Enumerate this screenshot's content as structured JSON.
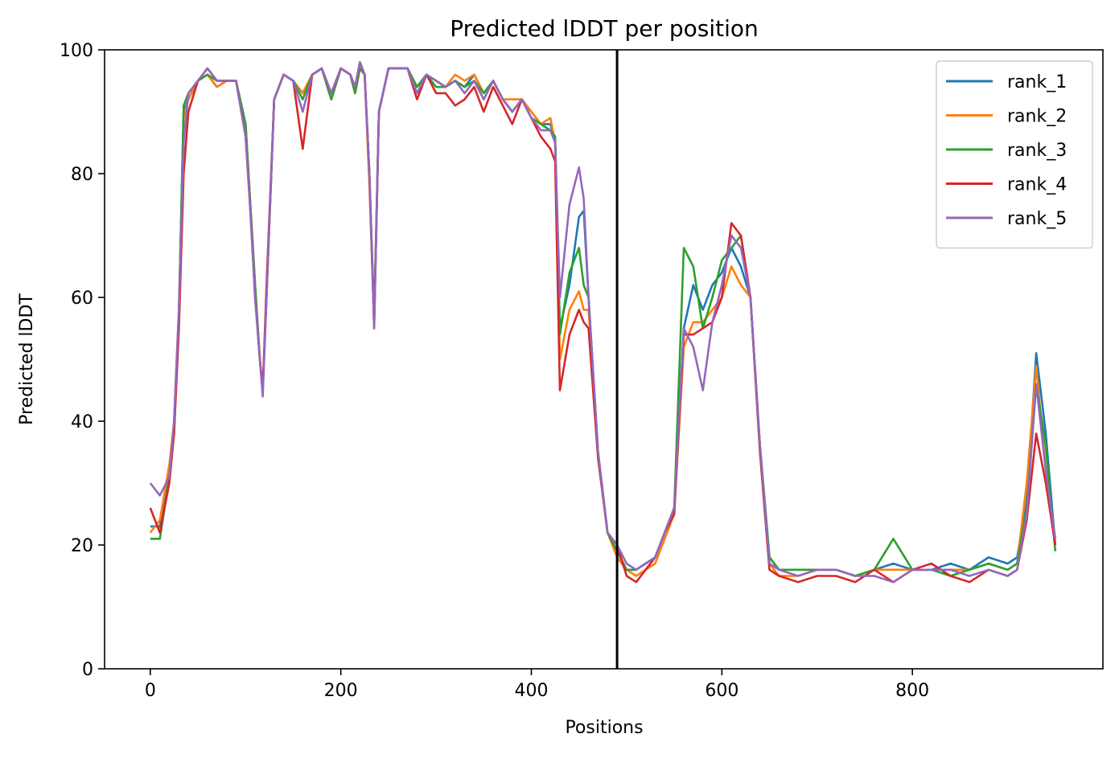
{
  "chart_data": {
    "type": "line",
    "title": "Predicted lDDT per position",
    "xlabel": "Positions",
    "ylabel": "Predicted lDDT",
    "xlim": [
      -48,
      1000
    ],
    "ylim": [
      0,
      100
    ],
    "xticks": [
      0,
      200,
      400,
      600,
      800
    ],
    "yticks": [
      0,
      20,
      40,
      60,
      80,
      100
    ],
    "grid": false,
    "legend_position": "top-right",
    "vline_x": 490,
    "colors": {
      "rank_1": "#1f77b4",
      "rank_2": "#ff7f0e",
      "rank_3": "#2ca02c",
      "rank_4": "#d62728",
      "rank_5": "#9467bd",
      "vline": "#000000"
    },
    "x": [
      0,
      10,
      20,
      25,
      30,
      35,
      40,
      50,
      60,
      70,
      80,
      90,
      100,
      105,
      110,
      115,
      118,
      122,
      130,
      140,
      150,
      160,
      170,
      180,
      190,
      200,
      210,
      215,
      220,
      225,
      230,
      235,
      240,
      250,
      260,
      270,
      280,
      290,
      300,
      310,
      320,
      330,
      340,
      350,
      360,
      370,
      380,
      390,
      400,
      410,
      420,
      425,
      430,
      440,
      450,
      455,
      460,
      470,
      480,
      490,
      500,
      510,
      520,
      530,
      540,
      550,
      560,
      570,
      580,
      590,
      600,
      610,
      620,
      630,
      640,
      650,
      660,
      680,
      700,
      720,
      740,
      760,
      780,
      800,
      820,
      840,
      860,
      880,
      900,
      910,
      920,
      930,
      940,
      950
    ],
    "series": [
      {
        "name": "rank_1",
        "values": [
          23,
          23,
          32,
          40,
          58,
          90,
          92,
          95,
          96,
          94,
          95,
          95,
          88,
          75,
          62,
          50,
          45,
          60,
          92,
          96,
          95,
          93,
          96,
          97,
          92,
          97,
          96,
          93,
          97,
          96,
          80,
          56,
          90,
          97,
          97,
          97,
          94,
          96,
          95,
          94,
          95,
          94,
          96,
          93,
          95,
          92,
          90,
          92,
          90,
          88,
          88,
          85,
          55,
          62,
          73,
          74,
          60,
          35,
          22,
          19,
          16,
          16,
          17,
          18,
          22,
          26,
          55,
          62,
          58,
          62,
          64,
          68,
          65,
          60,
          36,
          18,
          16,
          16,
          16,
          16,
          15,
          16,
          17,
          16,
          16,
          17,
          16,
          18,
          17,
          18,
          27,
          51,
          38,
          20
        ]
      },
      {
        "name": "rank_2",
        "values": [
          22,
          24,
          33,
          40,
          58,
          89,
          92,
          95,
          96,
          94,
          95,
          95,
          87,
          75,
          62,
          50,
          45,
          60,
          92,
          96,
          95,
          93,
          96,
          97,
          92,
          97,
          96,
          93,
          97,
          96,
          78,
          56,
          90,
          97,
          97,
          97,
          94,
          96,
          95,
          94,
          96,
          95,
          96,
          93,
          95,
          92,
          92,
          92,
          90,
          88,
          89,
          85,
          50,
          58,
          61,
          58,
          58,
          35,
          22,
          18,
          16,
          15,
          16,
          17,
          21,
          25,
          52,
          56,
          56,
          58,
          60,
          65,
          62,
          60,
          35,
          17,
          15,
          15,
          16,
          16,
          15,
          16,
          16,
          16,
          16,
          16,
          16,
          17,
          16,
          17,
          30,
          49,
          32,
          20
        ]
      },
      {
        "name": "rank_3",
        "values": [
          21,
          21,
          31,
          38,
          57,
          91,
          93,
          95,
          96,
          95,
          95,
          95,
          88,
          75,
          62,
          50,
          45,
          60,
          92,
          96,
          95,
          92,
          96,
          97,
          92,
          97,
          96,
          93,
          97,
          96,
          80,
          57,
          90,
          97,
          97,
          97,
          94,
          96,
          94,
          94,
          95,
          94,
          95,
          93,
          95,
          92,
          90,
          92,
          89,
          88,
          87,
          86,
          54,
          64,
          68,
          62,
          60,
          35,
          22,
          19,
          16,
          16,
          17,
          18,
          22,
          26,
          68,
          65,
          55,
          60,
          66,
          68,
          70,
          60,
          36,
          18,
          16,
          16,
          16,
          16,
          15,
          16,
          21,
          16,
          16,
          15,
          16,
          17,
          16,
          17,
          26,
          46,
          36,
          19
        ]
      },
      {
        "name": "rank_4",
        "values": [
          26,
          22,
          30,
          38,
          55,
          80,
          90,
          95,
          97,
          95,
          95,
          95,
          86,
          74,
          60,
          50,
          45,
          62,
          92,
          96,
          95,
          84,
          96,
          97,
          93,
          97,
          96,
          94,
          98,
          96,
          80,
          55,
          90,
          97,
          97,
          97,
          92,
          96,
          93,
          93,
          91,
          92,
          94,
          90,
          94,
          91,
          88,
          92,
          89,
          86,
          84,
          82,
          45,
          54,
          58,
          56,
          55,
          34,
          22,
          20,
          15,
          14,
          16,
          18,
          22,
          25,
          54,
          54,
          55,
          56,
          60,
          72,
          70,
          60,
          35,
          16,
          15,
          14,
          15,
          15,
          14,
          16,
          14,
          16,
          17,
          15,
          14,
          16,
          15,
          16,
          24,
          38,
          30,
          20
        ]
      },
      {
        "name": "rank_5",
        "values": [
          30,
          28,
          31,
          40,
          58,
          85,
          93,
          95,
          97,
          95,
          95,
          95,
          86,
          74,
          60,
          50,
          44,
          60,
          92,
          96,
          95,
          90,
          96,
          97,
          93,
          97,
          96,
          94,
          98,
          96,
          80,
          55,
          90,
          97,
          97,
          97,
          93,
          96,
          95,
          94,
          95,
          93,
          95,
          92,
          95,
          92,
          90,
          92,
          89,
          87,
          87,
          85,
          60,
          75,
          81,
          76,
          60,
          35,
          22,
          20,
          17,
          16,
          17,
          18,
          22,
          26,
          55,
          52,
          45,
          56,
          62,
          70,
          68,
          60,
          36,
          17,
          16,
          15,
          16,
          16,
          15,
          15,
          14,
          16,
          16,
          16,
          15,
          16,
          15,
          16,
          25,
          46,
          32,
          21
        ]
      }
    ]
  }
}
